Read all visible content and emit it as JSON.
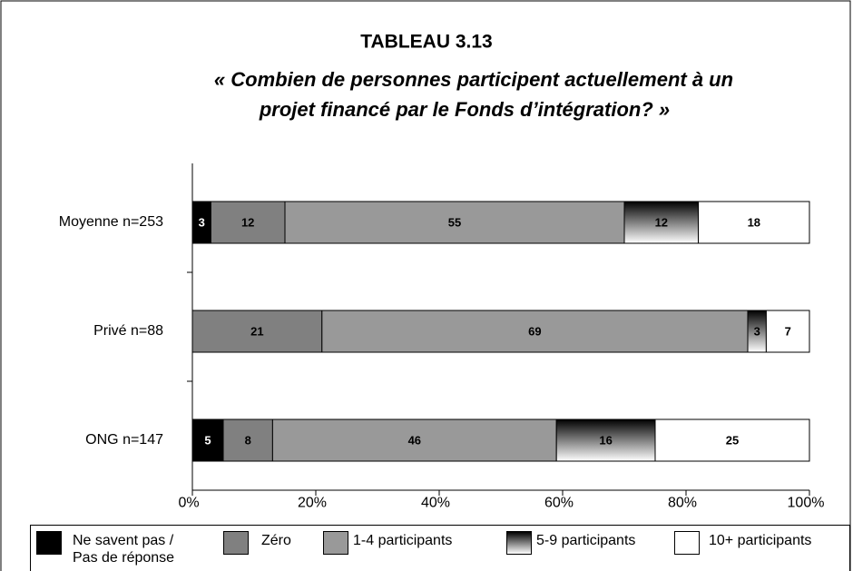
{
  "chart_data": {
    "type": "stacked_barh",
    "title": "TABLEAU 3.13",
    "subtitle": [
      "« Combien de personnes participent actuellement à un",
      "projet financé par le Fonds d’intégration? »"
    ],
    "categories": [
      "Moyenne n=253",
      "Privé n=88",
      "ONG n=147"
    ],
    "series": [
      {
        "name": "Ne savent pas / Pas de réponse",
        "color": "#000000",
        "values": [
          3,
          null,
          5
        ]
      },
      {
        "name": "Zéro",
        "color": "#808080",
        "values": [
          12,
          21,
          8
        ]
      },
      {
        "name": "1-4 participants",
        "color": "#999999",
        "values": [
          55,
          69,
          46
        ]
      },
      {
        "name": "5-9 participants",
        "color": "#000000",
        "gradient": true,
        "values": [
          12,
          3,
          16
        ]
      },
      {
        "name": "10+ participants",
        "color": "#ffffff",
        "values": [
          18,
          7,
          25
        ]
      }
    ],
    "xlim": [
      0,
      100
    ],
    "xticks": [
      {
        "value": 0,
        "label": "0%"
      },
      {
        "value": 20,
        "label": "20%"
      },
      {
        "value": 40,
        "label": "40%"
      },
      {
        "value": 60,
        "label": "60%"
      },
      {
        "value": 80,
        "label": "80%"
      },
      {
        "value": 100,
        "label": "100%"
      }
    ],
    "legend": "bottom"
  }
}
